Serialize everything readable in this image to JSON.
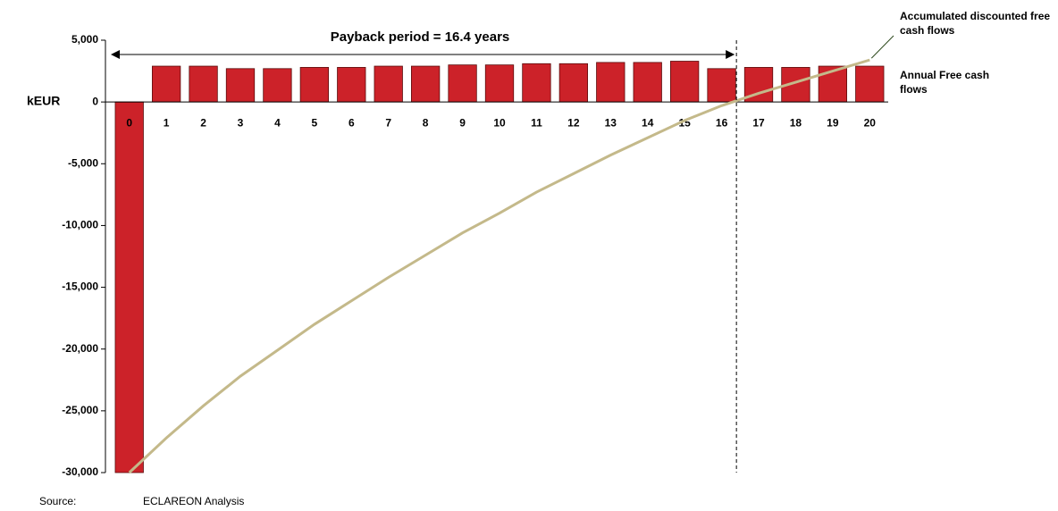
{
  "chart_data": {
    "type": "bar",
    "annotation": "Payback period = 16.4 years",
    "payback": 16.4,
    "ylabel": "kEUR",
    "source_label": "Source:",
    "source": "ECLAREON Analysis",
    "categories": [
      "0",
      "1",
      "2",
      "3",
      "4",
      "5",
      "6",
      "7",
      "8",
      "9",
      "10",
      "11",
      "12",
      "13",
      "14",
      "15",
      "16",
      "17",
      "18",
      "19",
      "20"
    ],
    "series": [
      {
        "name": "Annual Free cash flows",
        "color": "#cc2229",
        "type": "bar",
        "values": [
          -30000,
          2900,
          2900,
          2700,
          2700,
          2800,
          2800,
          2900,
          2900,
          3000,
          3000,
          3100,
          3100,
          3200,
          3200,
          3300,
          2700,
          2800,
          2800,
          2900,
          2900
        ]
      },
      {
        "name": "Accumulated discounted free cash flows",
        "color": "#c4b98a",
        "type": "line",
        "values": [
          -30000,
          -27200,
          -24600,
          -22200,
          -20100,
          -18000,
          -16100,
          -14200,
          -12400,
          -10600,
          -9000,
          -7300,
          -5800,
          -4300,
          -2900,
          -1500,
          -300,
          700,
          1600,
          2500,
          3400
        ]
      }
    ],
    "ylim": [
      -30000,
      5000
    ],
    "yticks": [
      {
        "value": -30000,
        "label": "-30,000"
      },
      {
        "value": -25000,
        "label": "-25,000"
      },
      {
        "value": -20000,
        "label": "-20,000"
      },
      {
        "value": -15000,
        "label": "-15,000"
      },
      {
        "value": -10000,
        "label": "-10,000"
      },
      {
        "value": -5000,
        "label": "-5,000"
      },
      0,
      {
        "value": 5000,
        "label": "5,000"
      }
    ],
    "grid": false
  }
}
